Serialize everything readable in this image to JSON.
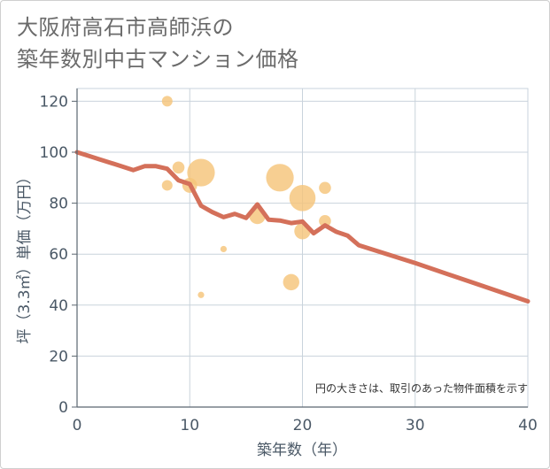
{
  "chart_data": {
    "type": "scatter",
    "title_lines": [
      "大阪府高石市高師浜の",
      "築年数別中古マンション価格"
    ],
    "xlabel": "築年数（年）",
    "ylabel": "坪（3.3㎡）単価（万円）",
    "xlim": [
      0,
      40
    ],
    "ylim": [
      0,
      125
    ],
    "xticks": [
      0,
      10,
      20,
      30,
      40
    ],
    "yticks": [
      0,
      20,
      40,
      60,
      80,
      100,
      120
    ],
    "grid": true,
    "note": "円の大きさは、取引のあった物件面積を示す",
    "colors": {
      "bubble": "#f5c57a",
      "line": "#d4705a",
      "grid": "#c9d3dc",
      "axis": "#5b6670"
    },
    "bubbles": [
      {
        "x": 8,
        "y": 120,
        "size": 5
      },
      {
        "x": 8,
        "y": 87,
        "size": 5
      },
      {
        "x": 9,
        "y": 94,
        "size": 6
      },
      {
        "x": 10,
        "y": 87,
        "size": 8
      },
      {
        "x": 11,
        "y": 92,
        "size": 17
      },
      {
        "x": 11,
        "y": 44,
        "size": 2
      },
      {
        "x": 13,
        "y": 62,
        "size": 2
      },
      {
        "x": 16,
        "y": 75,
        "size": 9
      },
      {
        "x": 18,
        "y": 90,
        "size": 17
      },
      {
        "x": 19,
        "y": 49,
        "size": 9
      },
      {
        "x": 20,
        "y": 82,
        "size": 16
      },
      {
        "x": 20,
        "y": 69,
        "size": 9
      },
      {
        "x": 22,
        "y": 86,
        "size": 6
      },
      {
        "x": 22,
        "y": 73,
        "size": 6
      }
    ],
    "trend_line": {
      "x": [
        0,
        1,
        2,
        3,
        4,
        5,
        6,
        7,
        8,
        9,
        10,
        11,
        12,
        13,
        14,
        15,
        16,
        17,
        18,
        19,
        20,
        21,
        22,
        23,
        24,
        25,
        30,
        35,
        40
      ],
      "y": [
        100,
        98.6,
        97.2,
        95.8,
        94.4,
        93,
        94.5,
        94.5,
        93.5,
        89,
        87.5,
        79,
        76.5,
        74.5,
        75.8,
        74.2,
        79.5,
        73.5,
        73.2,
        72.2,
        72.8,
        68.2,
        71.3,
        68.8,
        67.3,
        63.5,
        56.5,
        49,
        41.5
      ]
    }
  }
}
